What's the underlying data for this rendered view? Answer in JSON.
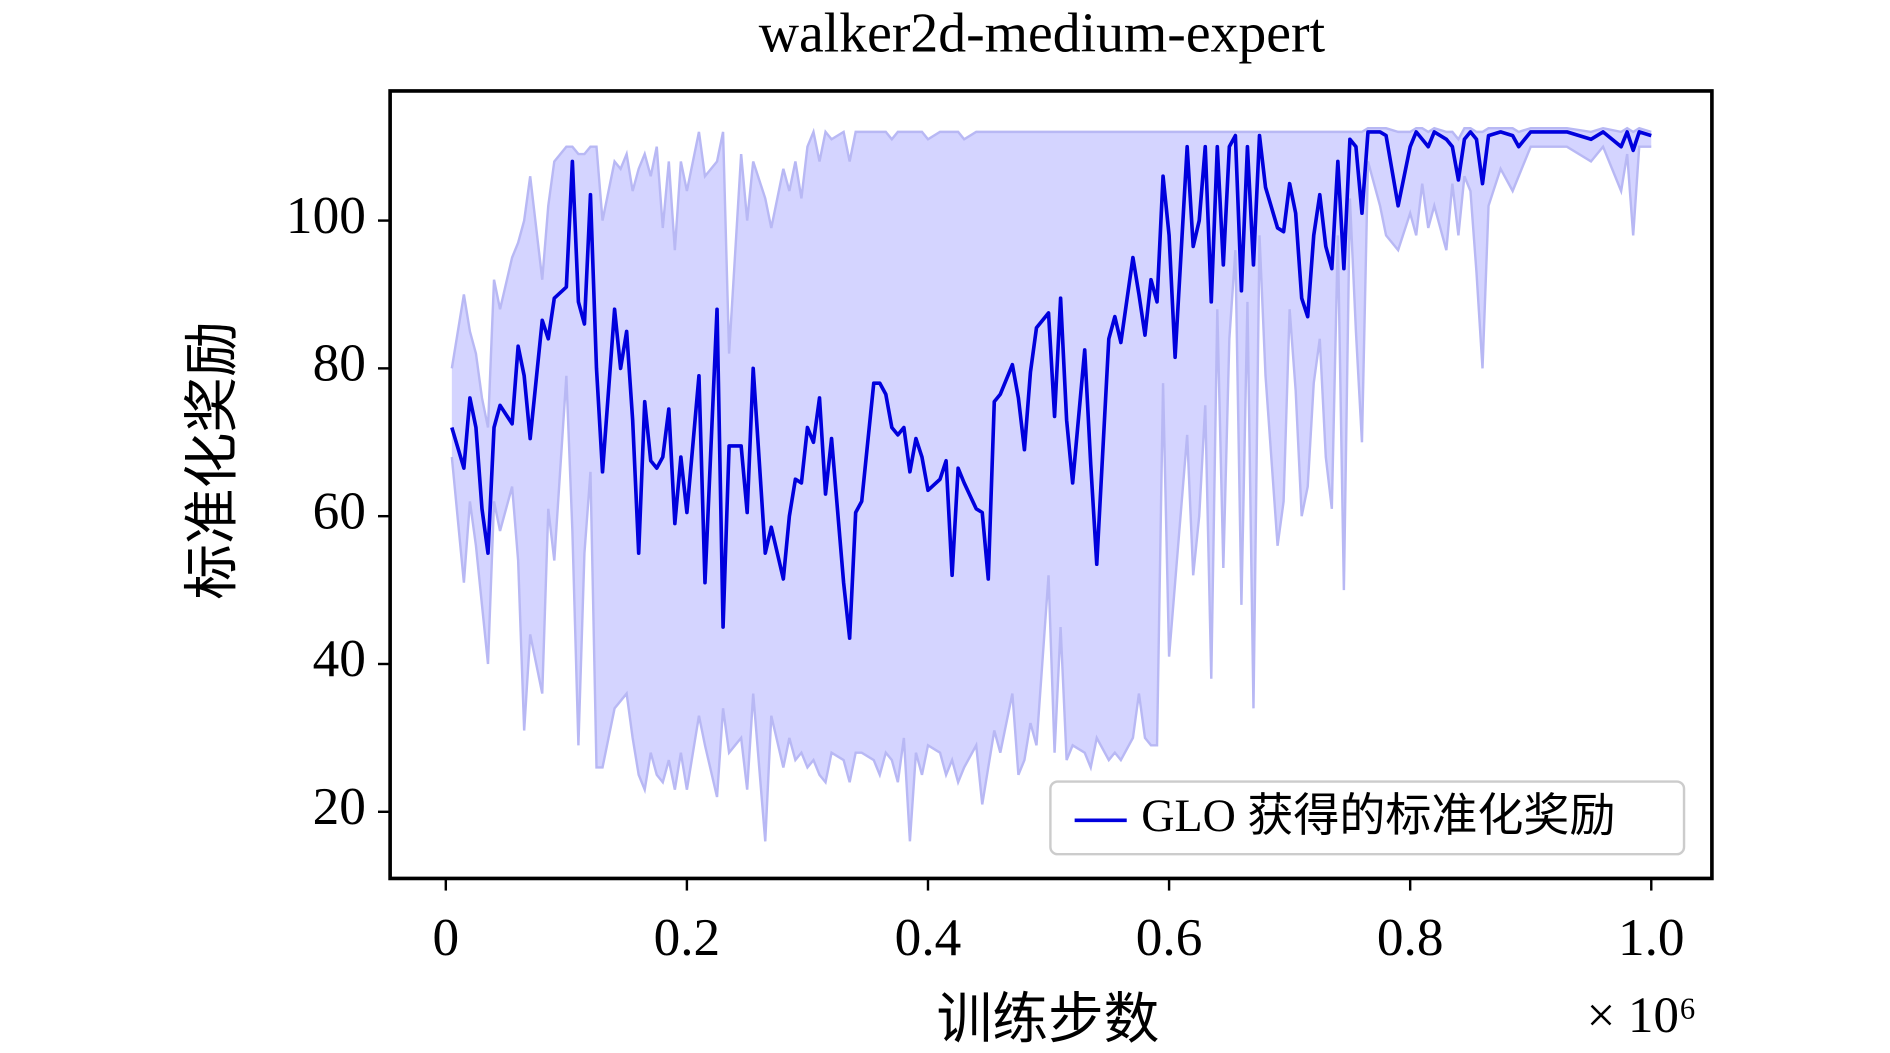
{
  "chart_data": {
    "type": "line",
    "title": "walker2d-medium-expert",
    "xlabel": "训练步数",
    "ylabel": "标准化奖励",
    "x_annotation": "× 10⁶",
    "xlim": [
      -0.0462,
      1.0503
    ],
    "ylim": [
      10.98,
      117.54
    ],
    "xticks": [
      0,
      0.2,
      0.4,
      0.6,
      0.8,
      {
        "value": 1,
        "label": "1.0"
      }
    ],
    "yticks": [
      20,
      40,
      60,
      80,
      100
    ],
    "legend": "lower right",
    "x": [
      0.005,
      0.015,
      0.02,
      0.025,
      0.03,
      0.035,
      0.04,
      0.045,
      0.055,
      0.06,
      0.065,
      0.07,
      0.08,
      0.085,
      0.09,
      0.1,
      0.105,
      0.11,
      0.115,
      0.12,
      0.125,
      0.13,
      0.14,
      0.145,
      0.15,
      0.155,
      0.16,
      0.165,
      0.17,
      0.175,
      0.18,
      0.185,
      0.19,
      0.195,
      0.2,
      0.21,
      0.215,
      0.225,
      0.23,
      0.235,
      0.245,
      0.25,
      0.255,
      0.265,
      0.27,
      0.28,
      0.285,
      0.29,
      0.295,
      0.3,
      0.305,
      0.31,
      0.315,
      0.32,
      0.33,
      0.335,
      0.34,
      0.345,
      0.355,
      0.36,
      0.365,
      0.37,
      0.375,
      0.38,
      0.385,
      0.39,
      0.395,
      0.4,
      0.41,
      0.415,
      0.42,
      0.425,
      0.43,
      0.44,
      0.445,
      0.45,
      0.455,
      0.46,
      0.47,
      0.475,
      0.48,
      0.485,
      0.49,
      0.5,
      0.505,
      0.51,
      0.515,
      0.52,
      0.53,
      0.535,
      0.54,
      0.55,
      0.555,
      0.56,
      0.57,
      0.575,
      0.58,
      0.585,
      0.59,
      0.595,
      0.6,
      0.605,
      0.615,
      0.62,
      0.625,
      0.63,
      0.635,
      0.64,
      0.645,
      0.65,
      0.655,
      0.66,
      0.665,
      0.67,
      0.675,
      0.68,
      0.69,
      0.695,
      0.7,
      0.705,
      0.71,
      0.715,
      0.72,
      0.725,
      0.73,
      0.735,
      0.74,
      0.745,
      0.75,
      0.755,
      0.76,
      0.765,
      0.775,
      0.78,
      0.79,
      0.8,
      0.805,
      0.81,
      0.815,
      0.82,
      0.83,
      0.835,
      0.84,
      0.845,
      0.85,
      0.855,
      0.86,
      0.865,
      0.875,
      0.885,
      0.89,
      0.9,
      0.93,
      0.95,
      0.96,
      0.975,
      0.98,
      0.985,
      0.99,
      1.0
    ],
    "series": [
      {
        "name": "GLO 获得的标准化奖励",
        "color": "#0000dd",
        "values": [
          72,
          66.5,
          76,
          72,
          61,
          55,
          72,
          75,
          72.5,
          83,
          79,
          70.5,
          86.5,
          84,
          89.5,
          91,
          108,
          89,
          86,
          103.5,
          80,
          66,
          88,
          80,
          85,
          73,
          55,
          75.5,
          67.5,
          66.5,
          68,
          74.5,
          59,
          68,
          60.5,
          79,
          51,
          88,
          45,
          69.5,
          69.5,
          60.5,
          80,
          55,
          58.5,
          51.5,
          60,
          65,
          64.5,
          72,
          70,
          76,
          63,
          70.5,
          51,
          43.5,
          60.5,
          62,
          78,
          78,
          76.5,
          72,
          71,
          72,
          66,
          70.5,
          68,
          63.5,
          65,
          67.5,
          52,
          66.5,
          64.5,
          61,
          60.5,
          51.5,
          75.5,
          76.5,
          80.5,
          76,
          69,
          79.5,
          85.5,
          87.5,
          73.5,
          89.5,
          73,
          64.5,
          82.5,
          67,
          53.5,
          84,
          87,
          83.5,
          95,
          90,
          84.5,
          92,
          89,
          106,
          98,
          81.5,
          110,
          96.5,
          100,
          110,
          89,
          110,
          94,
          110,
          111.5,
          90.5,
          110,
          94,
          111.5,
          104.5,
          99,
          98.5,
          105,
          101,
          89.5,
          87,
          98,
          103.5,
          96.5,
          93.5,
          108,
          93.5,
          111,
          110,
          101,
          112,
          112,
          111.5,
          102,
          110,
          112,
          111,
          110,
          112,
          111,
          110,
          105.5,
          111,
          112,
          111,
          105,
          111.5,
          112,
          111.5,
          110,
          112,
          112,
          111,
          112,
          110,
          112,
          109.5,
          112,
          111.5
        ]
      }
    ],
    "band": {
      "color": "#ccccff",
      "edge_color": "#b8b8f4",
      "lower": [
        68,
        51,
        62,
        56,
        48,
        40,
        62,
        58,
        64,
        54,
        31,
        44,
        36,
        61,
        54,
        79,
        58,
        29,
        55,
        66,
        26,
        26,
        34,
        35,
        36,
        30,
        25,
        23,
        28,
        25,
        24,
        27,
        23,
        28,
        23,
        33,
        29,
        22,
        34,
        28,
        30,
        23,
        36,
        16,
        33,
        26,
        30,
        27,
        28,
        26,
        27,
        25,
        24,
        28,
        27,
        24,
        28,
        28,
        27,
        25,
        28,
        27,
        24,
        30,
        16,
        28,
        25,
        29,
        28,
        25,
        27,
        24,
        26,
        29,
        21,
        26,
        31,
        28,
        36,
        25,
        27,
        32,
        29,
        52,
        28,
        45,
        27,
        29,
        28,
        26,
        30,
        27,
        28,
        27,
        30,
        36,
        30,
        29,
        29,
        78,
        41,
        51,
        71,
        52,
        60,
        75,
        38,
        88,
        53,
        84,
        96,
        48,
        89,
        34,
        98,
        79,
        56,
        62,
        88,
        77,
        60,
        64,
        78,
        84,
        68,
        61,
        98,
        50,
        103,
        85,
        70,
        108,
        102,
        98,
        96,
        101,
        98,
        105,
        99,
        102,
        96,
        105,
        98,
        106,
        104,
        93,
        80,
        102,
        107,
        104,
        106,
        110,
        110,
        108,
        110,
        104,
        109,
        98,
        110,
        110
      ],
      "upper": [
        80,
        90,
        85,
        82,
        76,
        72,
        92,
        88,
        95,
        97,
        100,
        106,
        92,
        102,
        108,
        110,
        110,
        109,
        109,
        110,
        110,
        100,
        108,
        107,
        109,
        104,
        107,
        109,
        106,
        110,
        99,
        108,
        96,
        108,
        104,
        112,
        106,
        108,
        112,
        82,
        109,
        100,
        108,
        103,
        99,
        107,
        104,
        108,
        103,
        110,
        112,
        108,
        112,
        111,
        112,
        108,
        112,
        112,
        112,
        112,
        112,
        111,
        112,
        112,
        112,
        112,
        112,
        111,
        112,
        112,
        112,
        112,
        111,
        112,
        112,
        112,
        112,
        112,
        112,
        112,
        112,
        112,
        112,
        112,
        112,
        112,
        112,
        112,
        112,
        112,
        112,
        112,
        112,
        112,
        112,
        112,
        112,
        112,
        112,
        112,
        112,
        112,
        112,
        112,
        112,
        112,
        112,
        112,
        112,
        112,
        112,
        112,
        112,
        112,
        112,
        112,
        112,
        112,
        112,
        112,
        112,
        112,
        112,
        112,
        112,
        112,
        112,
        112,
        112,
        112,
        112,
        112.5,
        112.5,
        112.5,
        112,
        112,
        112.5,
        112.5,
        112,
        112.5,
        112,
        112,
        111,
        112.5,
        112.5,
        112,
        112,
        112.5,
        112.5,
        112.5,
        112,
        112.5,
        112.5,
        112,
        112.5,
        112,
        112.5,
        112,
        112.5,
        112
      ]
    }
  }
}
